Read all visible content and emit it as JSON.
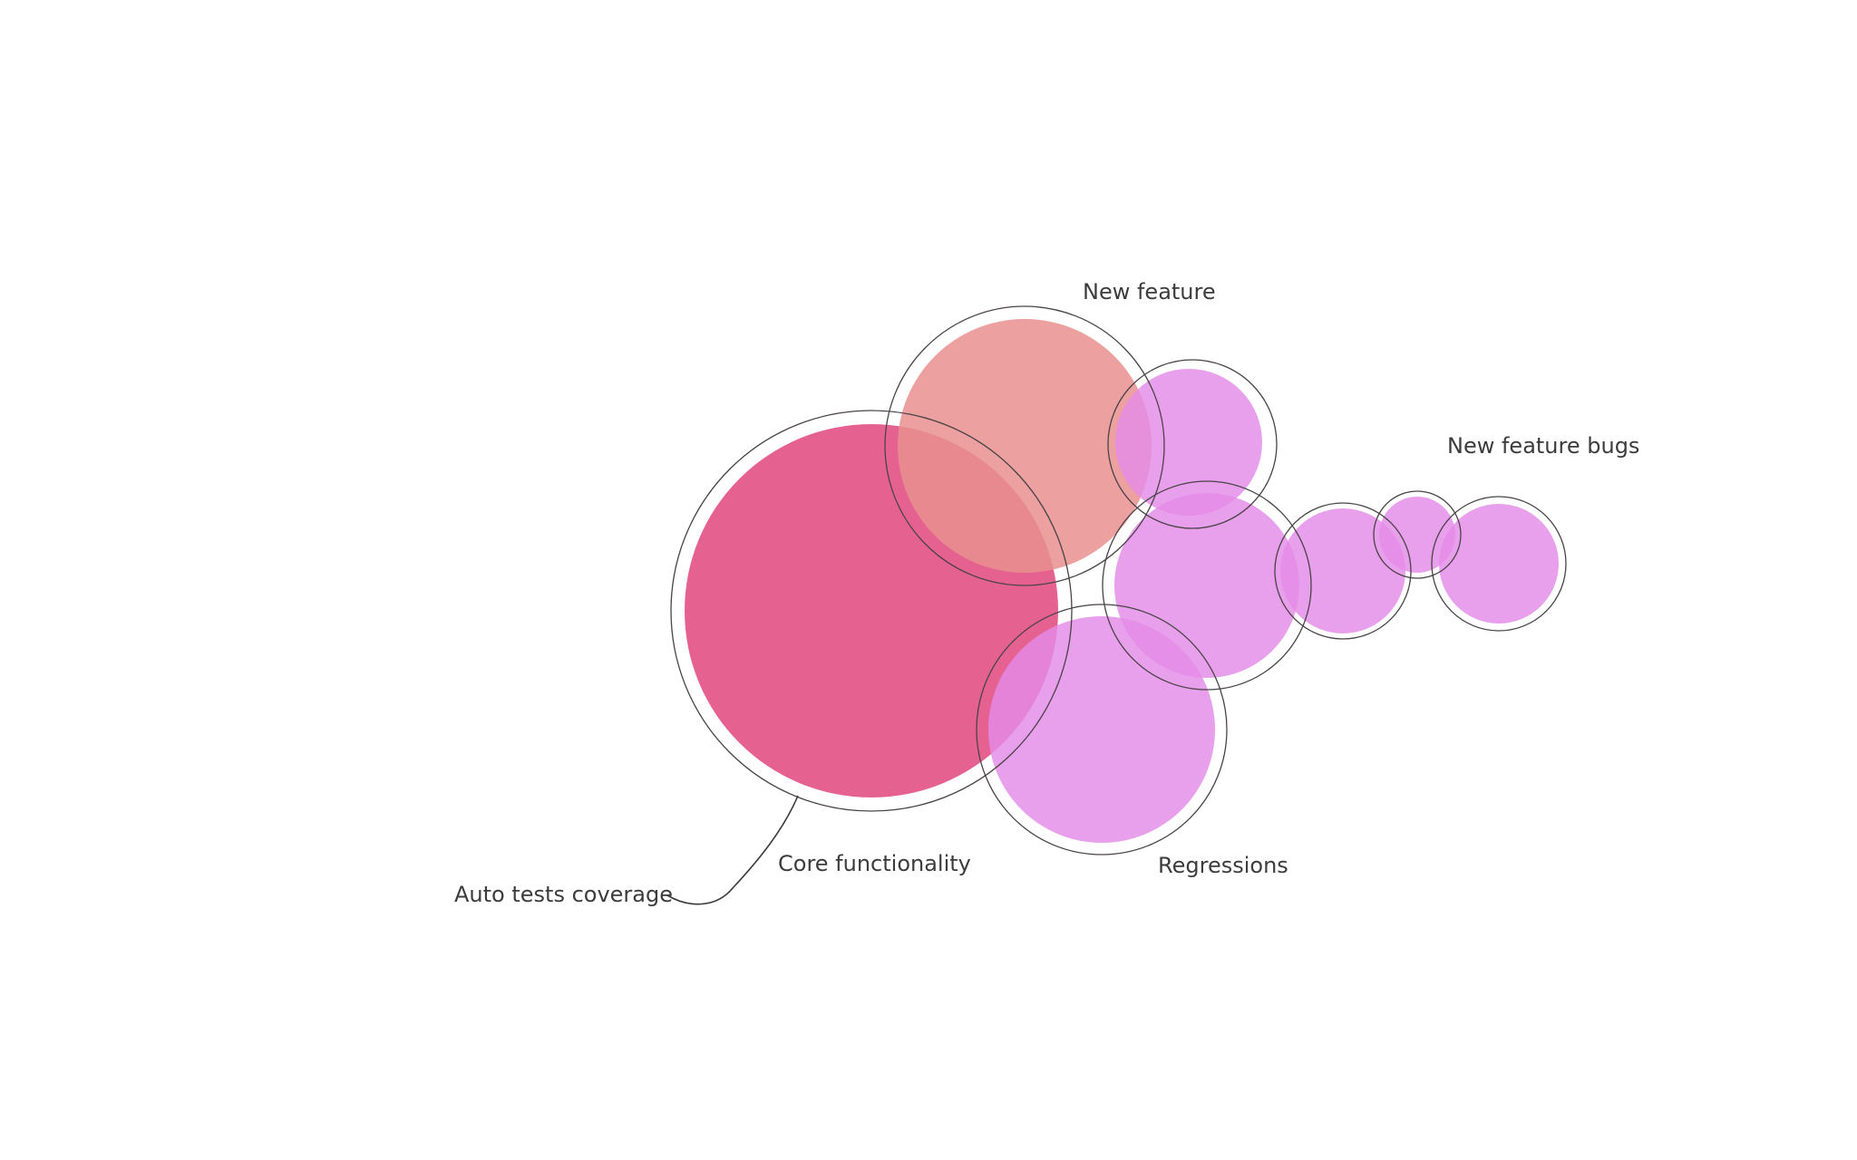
{
  "colors": {
    "core": "#e0477c",
    "new_feature": "#e98f8f",
    "bug": "#e48be8"
  },
  "labels": {
    "new_feature": "New feature",
    "new_feature_bugs": "New feature bugs",
    "core_functionality": "Core functionality",
    "regressions": "Regressions",
    "auto_tests_coverage": "Auto tests coverage"
  }
}
